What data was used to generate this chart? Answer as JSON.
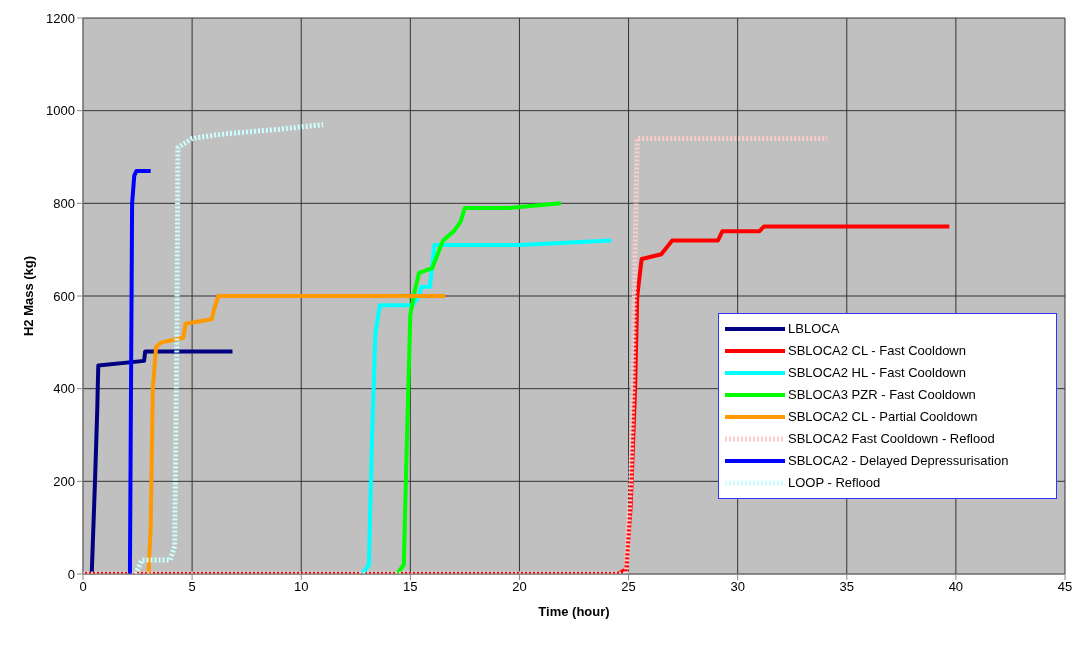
{
  "chart_data": {
    "type": "line",
    "xlabel": "Time (hour)",
    "ylabel": "H2 Mass (kg)",
    "xlim": [
      0,
      45
    ],
    "xticks": [
      0,
      5,
      10,
      15,
      20,
      25,
      30,
      35,
      40,
      45
    ],
    "ylim": [
      0,
      1200
    ],
    "yticks": [
      0,
      200,
      400,
      600,
      800,
      1000,
      1200
    ],
    "grid": true,
    "legend": "right",
    "marker": "none",
    "series": [
      {
        "name": "LBLOCA",
        "color": "#000080",
        "line_style": "solid",
        "x": [
          0.4,
          0.55,
          0.65,
          0.7,
          2.8,
          2.85,
          6.85
        ],
        "values": [
          0,
          200,
          350,
          450,
          460,
          480,
          480
        ]
      },
      {
        "name": "SBLOCA2 CL - Fast Cooldown",
        "color": "#ff0000",
        "line_style": "solid",
        "x": [
          0,
          24.5,
          24.9,
          25.1,
          25.3,
          25.4,
          25.6,
          26.5,
          27.0,
          29.1,
          29.3,
          31.0,
          31.2,
          39.7
        ],
        "values": [
          0,
          0,
          10,
          150,
          400,
          600,
          680,
          690,
          720,
          720,
          740,
          740,
          750,
          750
        ]
      },
      {
        "name": "SBLOCA2 HL - Fast Cooldown",
        "color": "#00ffff",
        "line_style": "solid",
        "x": [
          12.8,
          13.1,
          13.25,
          13.4,
          13.6,
          15.1,
          15.4,
          15.5,
          15.9,
          16.1,
          20,
          24.2
        ],
        "values": [
          0,
          20,
          300,
          520,
          580,
          580,
          600,
          620,
          620,
          710,
          710,
          720
        ]
      },
      {
        "name": "SBLOCA3 PZR - Fast Cooldown",
        "color": "#00ff00",
        "line_style": "solid",
        "x": [
          14.4,
          14.7,
          14.85,
          15.0,
          15.2,
          15.4,
          16.0,
          16.5,
          17.0,
          17.3,
          17.5,
          19.5,
          21.9
        ],
        "values": [
          0,
          20,
          300,
          560,
          610,
          650,
          660,
          720,
          740,
          760,
          790,
          790,
          800
        ]
      },
      {
        "name": "SBLOCA2 CL - Partial Cooldown",
        "color": "#ff9900",
        "line_style": "solid",
        "x": [
          3.0,
          3.1,
          3.2,
          3.35,
          3.6,
          4.6,
          4.7,
          5.9,
          6.0,
          6.2,
          16.6
        ],
        "values": [
          0,
          100,
          400,
          490,
          500,
          510,
          540,
          550,
          570,
          600,
          600
        ]
      },
      {
        "name": "SBLOCA2 Fast Cooldown - Reflood",
        "color": "#ffcccc",
        "line_style": "dotted",
        "x": [
          0,
          24.9,
          25.1,
          25.2,
          25.3,
          25.4,
          34.1
        ],
        "values": [
          0,
          0,
          200,
          400,
          700,
          940,
          940
        ]
      },
      {
        "name": "SBLOCA2 - Delayed Depressurisation",
        "color": "#0000ff",
        "line_style": "solid",
        "x": [
          2.15,
          2.2,
          2.25,
          2.35,
          2.45,
          3.1
        ],
        "values": [
          0,
          400,
          800,
          860,
          870,
          870
        ]
      },
      {
        "name": "LOOP - Reflood",
        "color": "#ccffff",
        "line_style": "dotted",
        "x": [
          2.4,
          2.7,
          4.0,
          4.2,
          4.3,
          4.35,
          5,
          6.5,
          9,
          11
        ],
        "values": [
          0,
          30,
          30,
          60,
          500,
          920,
          940,
          950,
          960,
          970
        ]
      }
    ]
  }
}
